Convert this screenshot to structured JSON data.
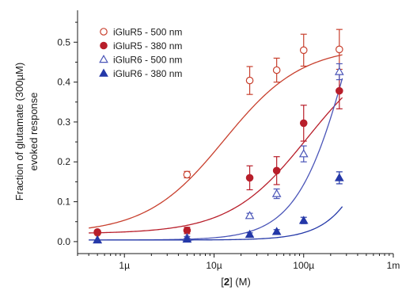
{
  "chart_data": {
    "type": "scatter",
    "title": "",
    "xlabel": {
      "prefix": "[",
      "bold": "2",
      "suffix": "] (M)"
    },
    "ylabel_lines": [
      "Fraction of glutamate (300µM)",
      "evoked response"
    ],
    "x_scale": "log",
    "xlim": [
      3e-07,
      0.001
    ],
    "ylim": [
      -0.03,
      0.58
    ],
    "x_ticks": [
      {
        "value": 1e-06,
        "label": "1µ"
      },
      {
        "value": 1e-05,
        "label": "10µ"
      },
      {
        "value": 0.0001,
        "label": "100µ"
      },
      {
        "value": 0.001,
        "label": "1m"
      }
    ],
    "y_ticks": [
      {
        "value": 0.0,
        "label": "0.0"
      },
      {
        "value": 0.1,
        "label": "0.1"
      },
      {
        "value": 0.2,
        "label": "0.2"
      },
      {
        "value": 0.3,
        "label": "0.3"
      },
      {
        "value": 0.4,
        "label": "0.4"
      },
      {
        "value": 0.5,
        "label": "0.5"
      }
    ],
    "legend_position": "top-left",
    "grid": false,
    "series": [
      {
        "name": "iGluR5 - 500 nm",
        "color": "#c8402e",
        "marker": "circle",
        "filled": false,
        "x": [
          5e-07,
          5e-06,
          2.5e-05,
          5e-05,
          0.0001,
          0.00025
        ],
        "y": [
          0.022,
          0.168,
          0.404,
          0.43,
          0.48,
          0.482
        ],
        "err": [
          0.0,
          0.008,
          0.035,
          0.03,
          0.04,
          0.05
        ],
        "fit": {
          "bottom": 0.02,
          "top": 0.49,
          "ec50": 1.3e-05,
          "hill": 1.0
        }
      },
      {
        "name": "iGluR5 - 380 nm",
        "color": "#b81e2a",
        "marker": "circle",
        "filled": true,
        "x": [
          5e-07,
          5e-06,
          2.5e-05,
          5e-05,
          0.0001,
          0.00025
        ],
        "y": [
          0.024,
          0.028,
          0.16,
          0.178,
          0.297,
          0.378
        ],
        "err": [
          0.0,
          0.008,
          0.03,
          0.035,
          0.045,
          0.045
        ],
        "fit": {
          "bottom": 0.02,
          "top": 0.5,
          "ec50": 0.00011,
          "hill": 1.0
        }
      },
      {
        "name": "iGluR6 - 500 nm",
        "color": "#4a55b8",
        "marker": "triangle",
        "filled": false,
        "x": [
          5e-07,
          5e-06,
          2.5e-05,
          5e-05,
          0.0001,
          0.00025
        ],
        "y": [
          0.004,
          0.01,
          0.065,
          0.12,
          0.22,
          0.426
        ],
        "err": [
          0.0,
          0.003,
          0.006,
          0.012,
          0.02,
          0.02
        ],
        "fit": {
          "bottom": 0.004,
          "top": 1.0,
          "ec50": 0.00035,
          "hill": 1.45
        }
      },
      {
        "name": "iGluR6 - 380 nm",
        "color": "#2438a8",
        "marker": "triangle",
        "filled": true,
        "x": [
          5e-07,
          5e-06,
          2.5e-05,
          5e-05,
          0.0001,
          0.00025
        ],
        "y": [
          0.004,
          0.006,
          0.018,
          0.025,
          0.053,
          0.16
        ],
        "err": [
          0.0,
          0.002,
          0.004,
          0.005,
          0.008,
          0.015
        ],
        "fit": {
          "bottom": 0.004,
          "top": 1.0,
          "ec50": 0.0012,
          "hill": 1.6
        }
      }
    ]
  }
}
